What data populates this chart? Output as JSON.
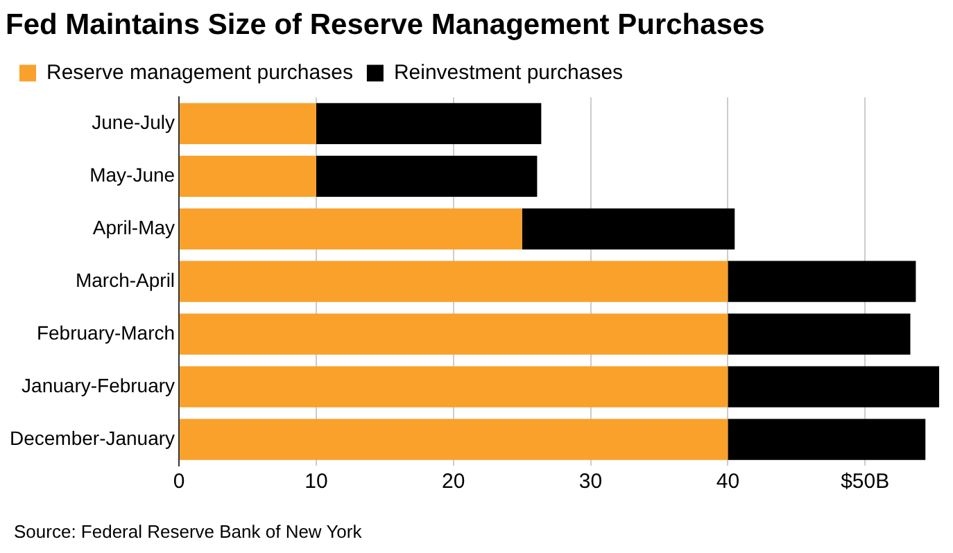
{
  "chart_data": {
    "type": "bar",
    "orientation": "horizontal",
    "stacked": true,
    "title": "Fed Maintains Size of Reserve Management Purchases",
    "categories": [
      "June-July",
      "May-June",
      "April-May",
      "March-April",
      "February-March",
      "January-February",
      "December-January"
    ],
    "series": [
      {
        "name": "Reserve management purchases",
        "color": "#f9a12b",
        "values": [
          10,
          10,
          25,
          40,
          40,
          40,
          40
        ]
      },
      {
        "name": "Reinvestment purchases",
        "color": "#000000",
        "values": [
          16.4,
          16.1,
          15.5,
          13.7,
          13.3,
          15.4,
          14.4
        ]
      }
    ],
    "xlim": [
      0,
      55.5
    ],
    "xticks": [
      0,
      10,
      20,
      30,
      40,
      {
        "value": 50,
        "label": "$50B"
      }
    ],
    "grid": "x",
    "legend": "top left",
    "annotations": [
      "Source: Federal Reserve Bank of New York"
    ]
  }
}
